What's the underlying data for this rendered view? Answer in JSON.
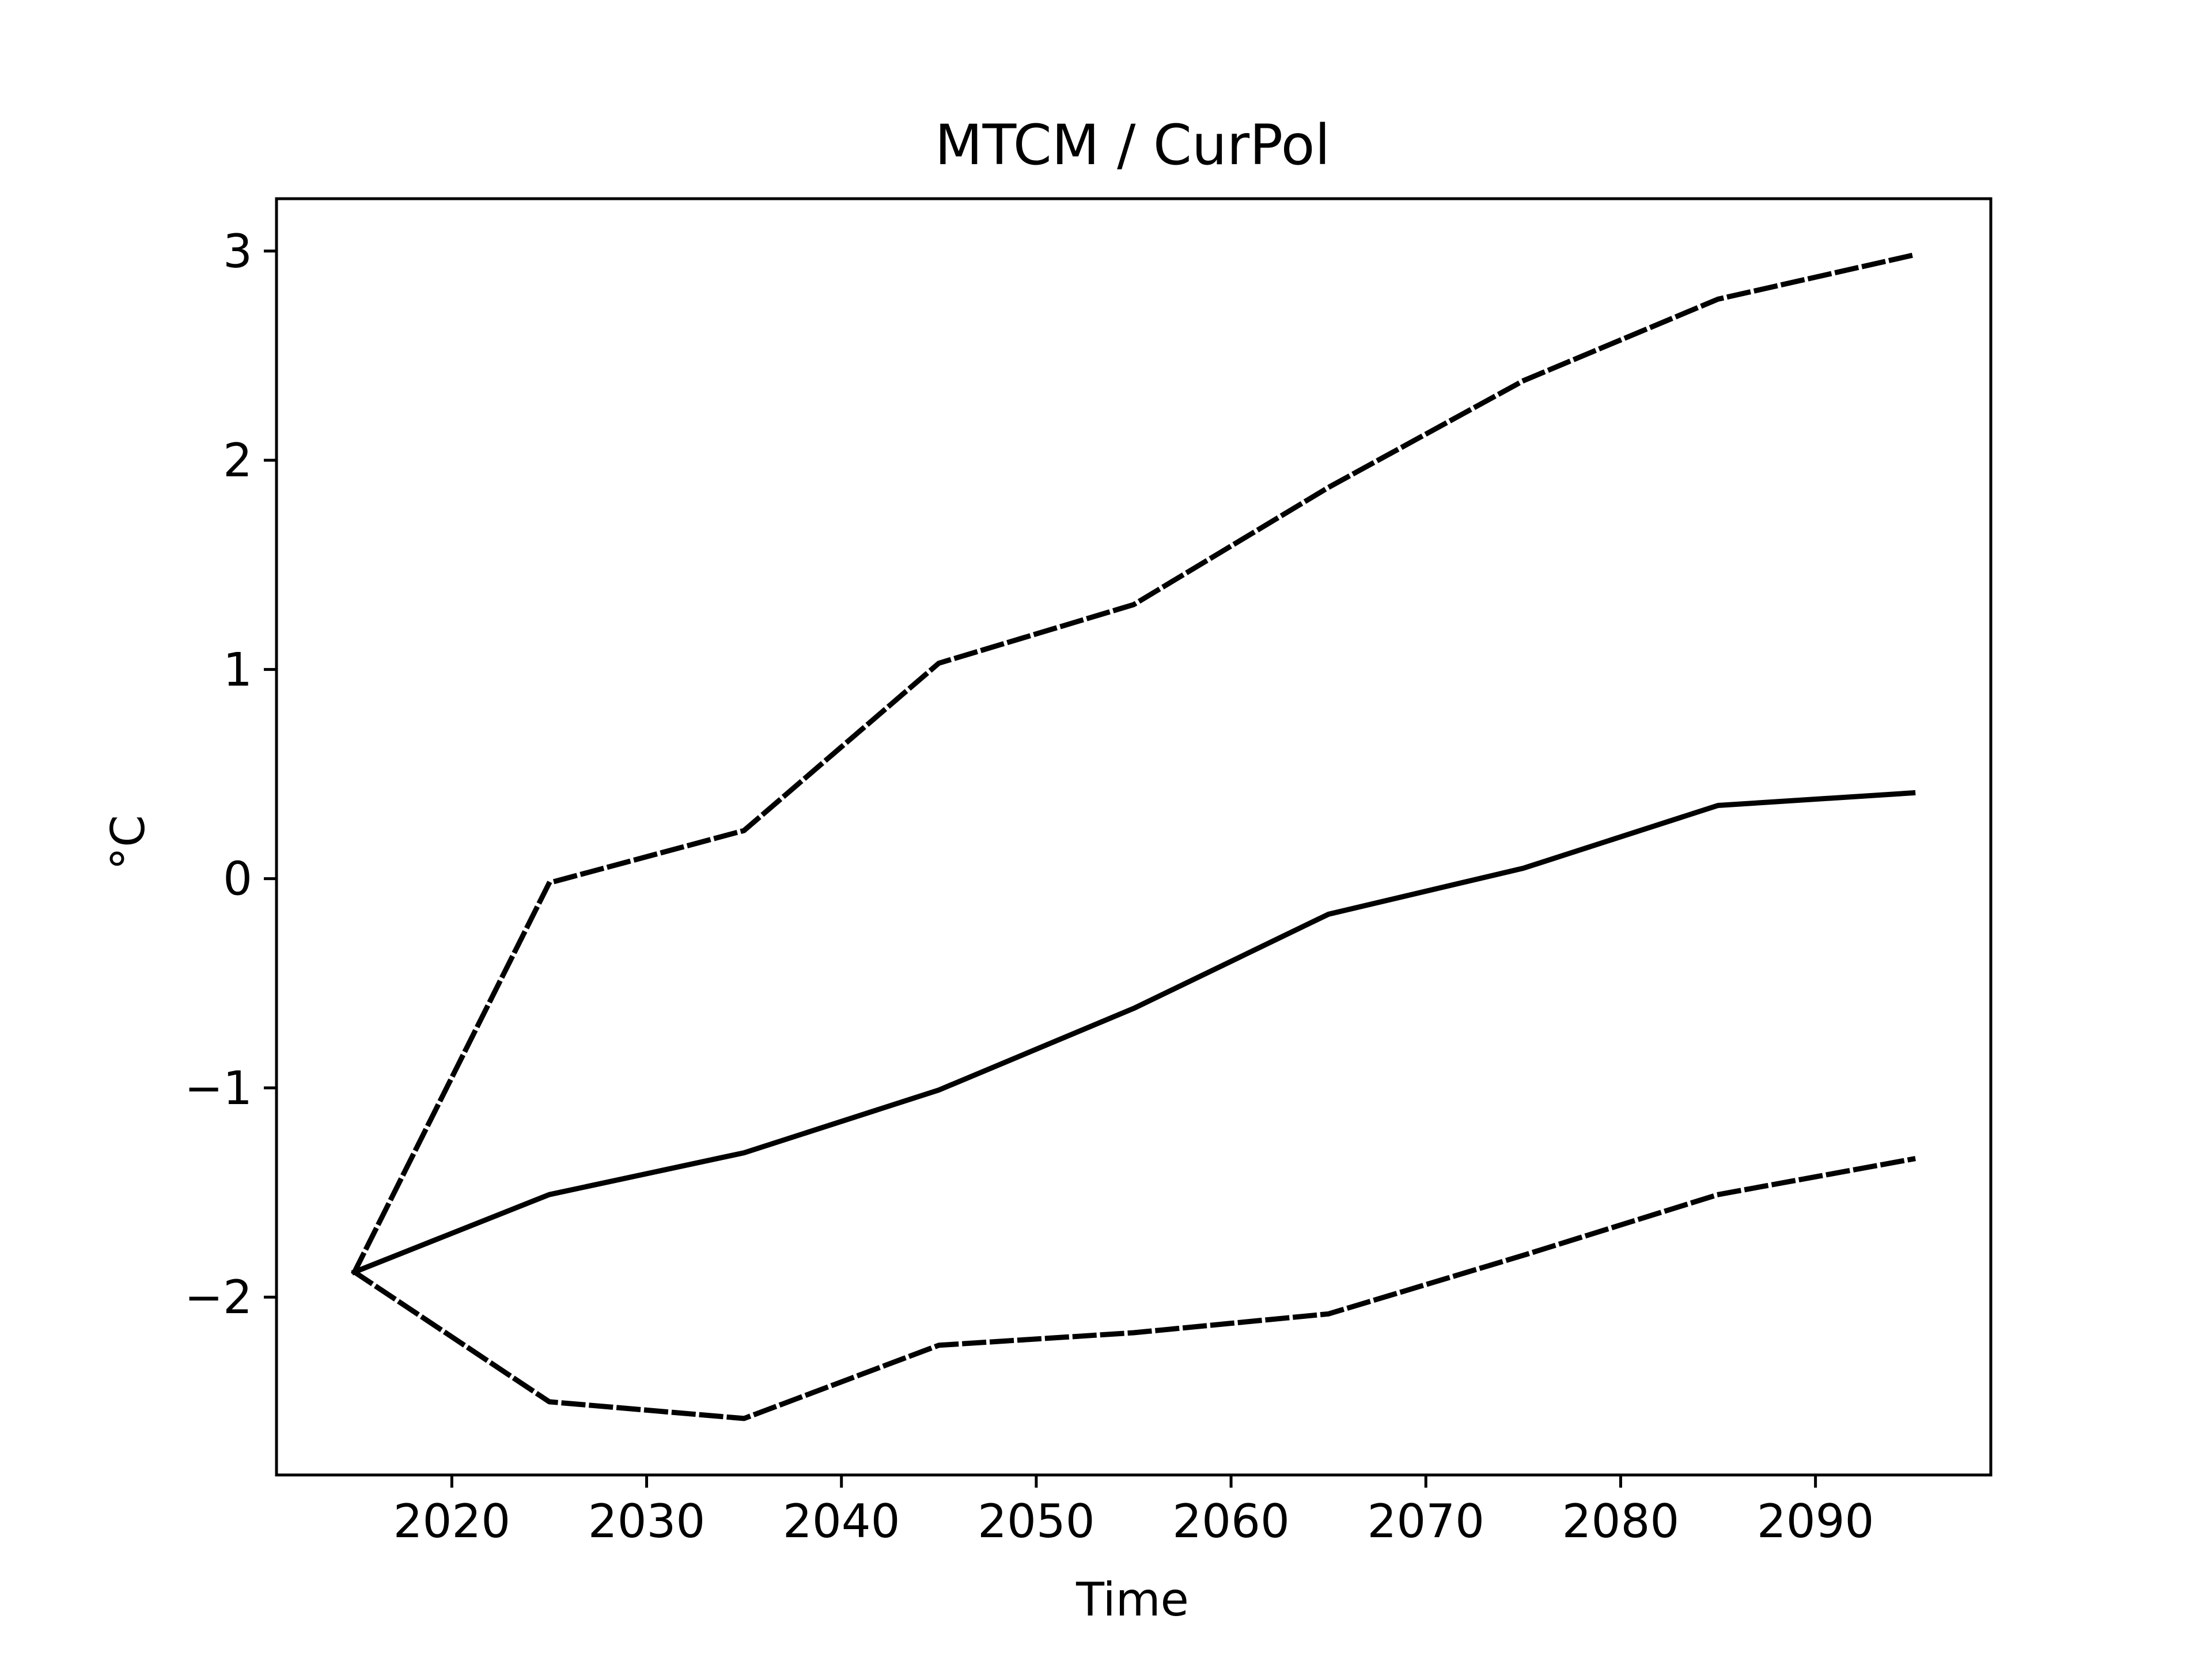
{
  "chart_data": {
    "type": "line",
    "title": "MTCM / CurPol",
    "xlabel": "Time",
    "ylabel": "°C",
    "x": [
      2015,
      2025,
      2035,
      2045,
      2055,
      2065,
      2075,
      2085,
      2095
    ],
    "xlim": [
      2011,
      2099
    ],
    "ylim": [
      -2.85,
      3.25
    ],
    "xticks": [
      2020,
      2030,
      2040,
      2050,
      2060,
      2070,
      2080,
      2090
    ],
    "xtick_labels": [
      "2020",
      "2030",
      "2040",
      "2050",
      "2060",
      "2070",
      "2080",
      "2090"
    ],
    "yticks": [
      -2,
      -1,
      0,
      1,
      2,
      3
    ],
    "ytick_labels": [
      "−2",
      "−1",
      "0",
      "1",
      "2",
      "3"
    ],
    "grid": false,
    "series": [
      {
        "style": "solid",
        "color": "#000000",
        "values": [
          -1.88,
          -1.51,
          -1.31,
          -1.01,
          -0.62,
          -0.17,
          0.05,
          0.35,
          0.41
        ]
      },
      {
        "style": "dashed",
        "color": "#000000",
        "values": [
          -1.88,
          -0.02,
          0.23,
          1.03,
          1.31,
          1.87,
          2.38,
          2.77,
          2.98
        ]
      },
      {
        "style": "dashed",
        "color": "#000000",
        "values": [
          -1.88,
          -2.5,
          -2.58,
          -2.23,
          -2.17,
          -2.08,
          -1.8,
          -1.51,
          -1.34
        ]
      }
    ]
  }
}
